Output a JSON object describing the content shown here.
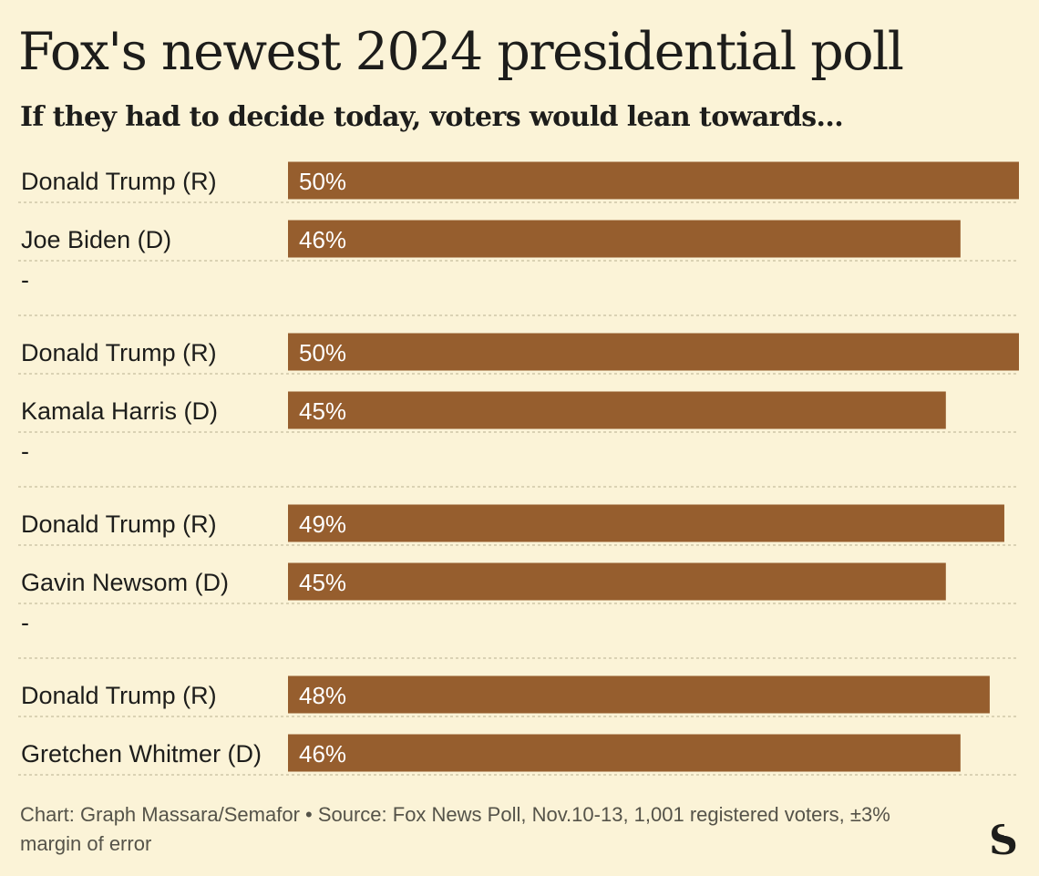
{
  "header": {
    "title": "Fox's newest 2024 presidential poll",
    "subtitle": "If they had to decide today, voters would lean towards..."
  },
  "chart_data": {
    "type": "bar",
    "orientation": "horizontal",
    "grid": false,
    "xlim": [
      0,
      50
    ],
    "bar_color": "#965e2e",
    "groups": [
      [
        {
          "label": "Donald Trump (R)",
          "value": 50,
          "value_label": "50%"
        },
        {
          "label": "Joe Biden (D)",
          "value": 46,
          "value_label": "46%"
        }
      ],
      [
        {
          "label": "Donald Trump (R)",
          "value": 50,
          "value_label": "50%"
        },
        {
          "label": "Kamala Harris (D)",
          "value": 45,
          "value_label": "45%"
        }
      ],
      [
        {
          "label": "Donald Trump (R)",
          "value": 49,
          "value_label": "49%"
        },
        {
          "label": "Gavin Newsom (D)",
          "value": 45,
          "value_label": "45%"
        }
      ],
      [
        {
          "label": "Donald Trump (R)",
          "value": 48,
          "value_label": "48%"
        },
        {
          "label": "Gretchen Whitmer (D)",
          "value": 46,
          "value_label": "46%"
        }
      ]
    ],
    "separator_label": "-"
  },
  "footer": {
    "source": "Chart: Graph Massara/Semafor • Source: Fox News Poll, Nov.10-13, 1,001 registered voters, ±3% margin of error"
  },
  "logo": {
    "icon": "semafor-s-logo",
    "text": "S"
  }
}
